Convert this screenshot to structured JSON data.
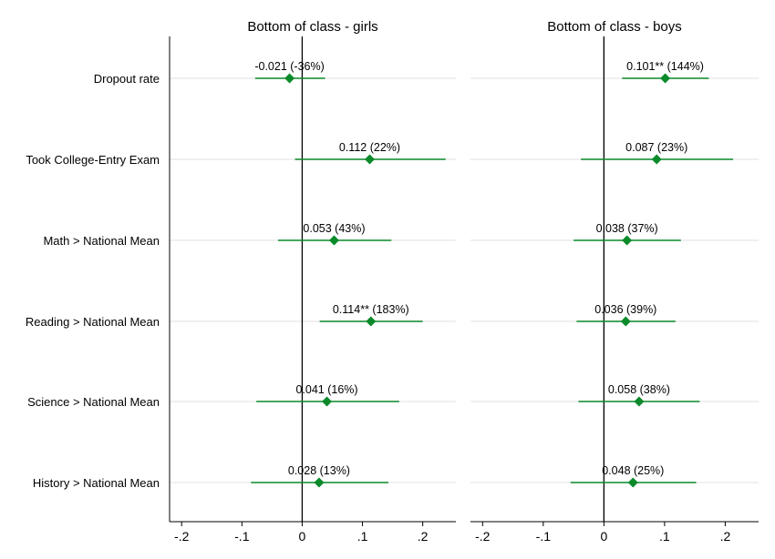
{
  "chart_data": {
    "type": "coefficient-plot",
    "xlim": [
      -0.22,
      0.255
    ],
    "x_ticks": [
      {
        "value": -0.2,
        "label": "-.2"
      },
      {
        "value": -0.1,
        "label": "-.1"
      },
      {
        "value": 0,
        "label": "0"
      },
      {
        "value": 0.1,
        "label": ".1"
      },
      {
        "value": 0.2,
        "label": ".2"
      }
    ],
    "categories": [
      "Dropout rate",
      "Took College-Entry Exam",
      "Math > National Mean",
      "Reading > National Mean",
      "Science > National Mean",
      "History > National Mean"
    ],
    "color": "#0a8a2a",
    "panels": [
      {
        "title": "Bottom of class - girls",
        "series": [
          {
            "estimate": -0.021,
            "ci": [
              -0.078,
              0.038
            ],
            "label": "-0.021 (-36%)"
          },
          {
            "estimate": 0.112,
            "ci": [
              -0.012,
              0.238
            ],
            "label": "0.112 (22%)"
          },
          {
            "estimate": 0.053,
            "ci": [
              -0.04,
              0.148
            ],
            "label": "0.053 (43%)"
          },
          {
            "estimate": 0.114,
            "ci": [
              0.029,
              0.2
            ],
            "label": "0.114** (183%)"
          },
          {
            "estimate": 0.041,
            "ci": [
              -0.076,
              0.161
            ],
            "label": "0.041 (16%)"
          },
          {
            "estimate": 0.028,
            "ci": [
              -0.085,
              0.143
            ],
            "label": "0.028 (13%)"
          }
        ]
      },
      {
        "title": "Bottom of class - boys",
        "series": [
          {
            "estimate": 0.101,
            "ci": [
              0.03,
              0.173
            ],
            "label": "0.101** (144%)"
          },
          {
            "estimate": 0.087,
            "ci": [
              -0.038,
              0.213
            ],
            "label": "0.087 (23%)"
          },
          {
            "estimate": 0.038,
            "ci": [
              -0.05,
              0.127
            ],
            "label": "0.038 (37%)"
          },
          {
            "estimate": 0.036,
            "ci": [
              -0.045,
              0.118
            ],
            "label": "0.036 (39%)"
          },
          {
            "estimate": 0.058,
            "ci": [
              -0.042,
              0.158
            ],
            "label": "0.058 (38%)"
          },
          {
            "estimate": 0.048,
            "ci": [
              -0.055,
              0.152
            ],
            "label": "0.048 (25%)"
          }
        ]
      }
    ]
  }
}
